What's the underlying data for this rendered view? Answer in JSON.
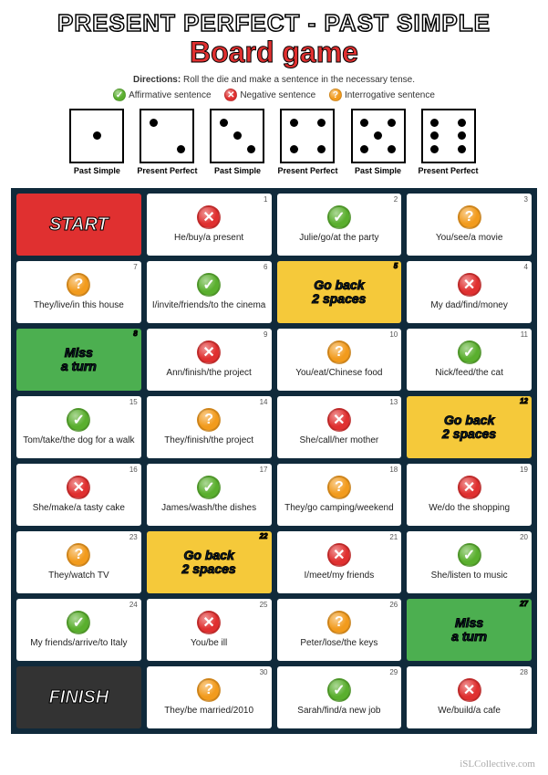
{
  "title": "PRESENT PERFECT - PAST SIMPLE",
  "subtitle": "Board game",
  "directions_label": "Directions:",
  "directions_text": " Roll the die and make a sentence in the necessary tense.",
  "legend": {
    "affirmative": "Affirmative sentence",
    "negative": "Negative sentence",
    "interrogative": "Interrogative sentence"
  },
  "dice": [
    {
      "pips": 1,
      "label": "Past Simple"
    },
    {
      "pips": 2,
      "label": "Present Perfect"
    },
    {
      "pips": 3,
      "label": "Past Simple"
    },
    {
      "pips": 4,
      "label": "Present Perfect"
    },
    {
      "pips": 5,
      "label": "Past Simple"
    },
    {
      "pips": 6,
      "label": "Present Perfect"
    }
  ],
  "special": {
    "start": "START",
    "finish": "FINISH",
    "miss": "Miss\na turn",
    "goback": "Go back\n2 spaces"
  },
  "icons": {
    "check": "✓",
    "cross": "✕",
    "quest": "?"
  },
  "colors": {
    "board_bg": "#102a3b",
    "start_bg": "#e03030",
    "finish_bg": "#333333",
    "miss_bg": "#4caf50",
    "goback_bg": "#f5c93a",
    "check_bg": "#5aaf2e",
    "cross_bg": "#e03030",
    "quest_bg": "#f29b1d",
    "subtitle_color": "#e03030"
  },
  "cells": [
    {
      "type": "start"
    },
    {
      "num": "1",
      "icon": "cross",
      "text": "He/buy/a present"
    },
    {
      "num": "2",
      "icon": "check",
      "text": "Julie/go/at the party"
    },
    {
      "num": "3",
      "icon": "quest",
      "text": "You/see/a movie"
    },
    {
      "num": "7",
      "icon": "quest",
      "text": "They/live/in this house"
    },
    {
      "num": "6",
      "icon": "check",
      "text": "I/invite/friends/to the cinema"
    },
    {
      "num": "5",
      "type": "goback"
    },
    {
      "num": "4",
      "icon": "cross",
      "text": "My dad/find/money"
    },
    {
      "num": "8",
      "type": "miss"
    },
    {
      "num": "9",
      "icon": "cross",
      "text": "Ann/finish/the project"
    },
    {
      "num": "10",
      "icon": "quest",
      "text": "You/eat/Chinese food"
    },
    {
      "num": "11",
      "icon": "check",
      "text": "Nick/feed/the cat"
    },
    {
      "num": "15",
      "icon": "check",
      "text": "Tom/take/the dog for a walk"
    },
    {
      "num": "14",
      "icon": "quest",
      "text": "They/finish/the project"
    },
    {
      "num": "13",
      "icon": "cross",
      "text": "She/call/her mother"
    },
    {
      "num": "12",
      "type": "goback"
    },
    {
      "num": "16",
      "icon": "cross",
      "text": "She/make/a tasty cake"
    },
    {
      "num": "17",
      "icon": "check",
      "text": "James/wash/the dishes"
    },
    {
      "num": "18",
      "icon": "quest",
      "text": "They/go camping/weekend"
    },
    {
      "num": "19",
      "icon": "cross",
      "text": "We/do the shopping"
    },
    {
      "num": "23",
      "icon": "quest",
      "text": "They/watch TV"
    },
    {
      "num": "22",
      "type": "goback"
    },
    {
      "num": "21",
      "icon": "cross",
      "text": "I/meet/my friends"
    },
    {
      "num": "20",
      "icon": "check",
      "text": "She/listen to music"
    },
    {
      "num": "24",
      "icon": "check",
      "text": "My friends/arrive/to Italy"
    },
    {
      "num": "25",
      "icon": "cross",
      "text": "You/be ill"
    },
    {
      "num": "26",
      "icon": "quest",
      "text": "Peter/lose/the keys"
    },
    {
      "num": "27",
      "type": "miss"
    },
    {
      "type": "finish"
    },
    {
      "num": "30",
      "icon": "quest",
      "text": "They/be married/2010"
    },
    {
      "num": "29",
      "icon": "check",
      "text": "Sarah/find/a new job"
    },
    {
      "num": "28",
      "icon": "cross",
      "text": "We/build/a cafe"
    }
  ],
  "watermark": "iSLCollective.com"
}
